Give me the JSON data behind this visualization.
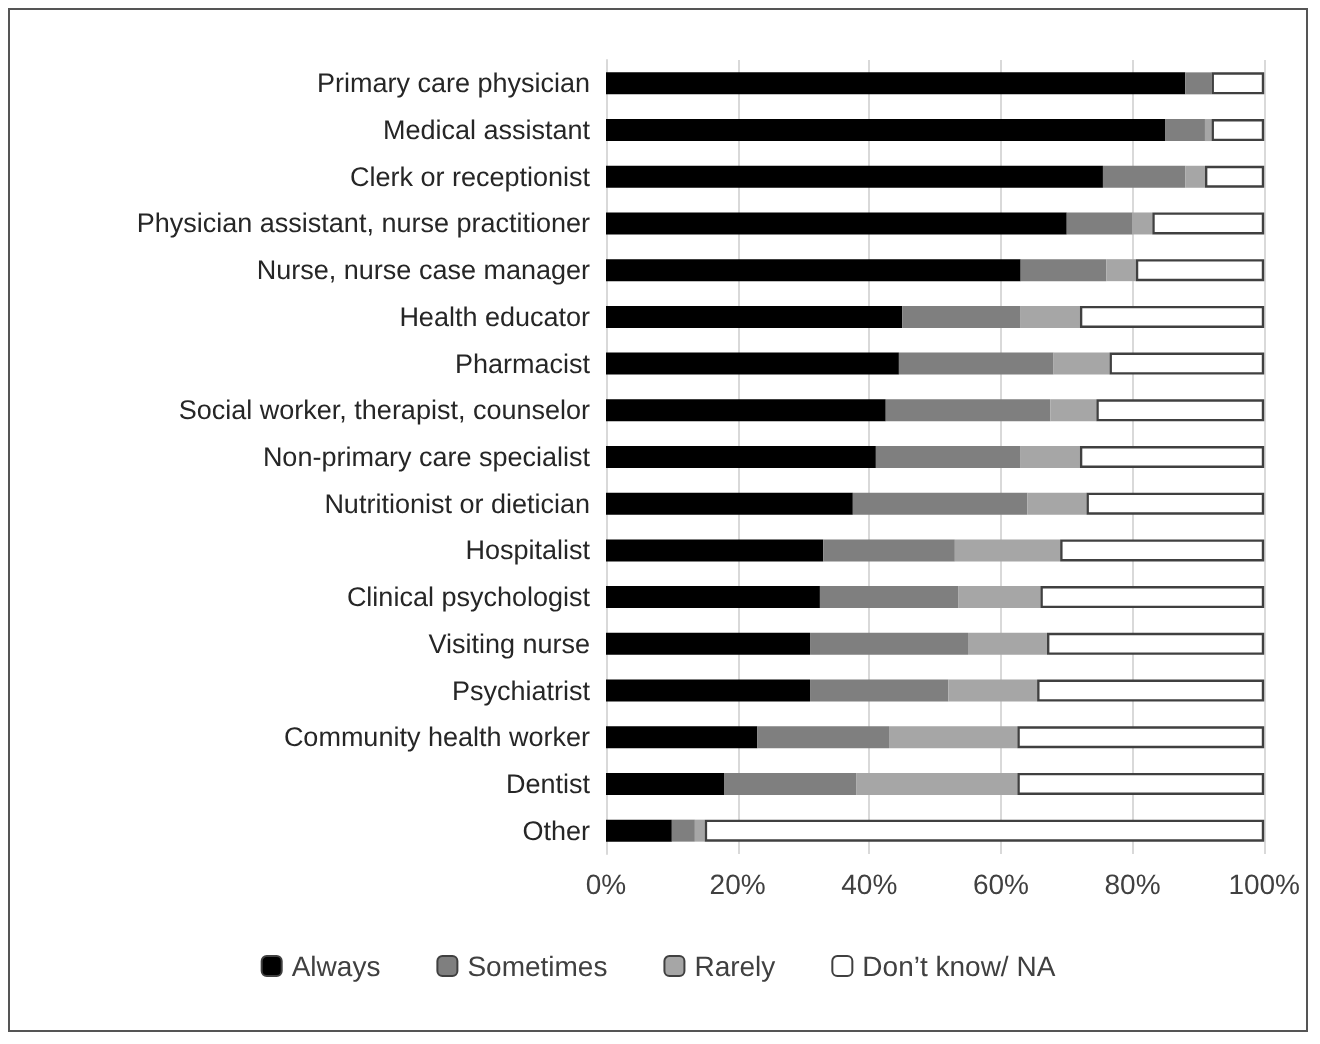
{
  "chart_data": {
    "type": "bar",
    "orientation": "horizontal",
    "stacked": true,
    "categories": [
      "Primary care physician",
      "Medical assistant",
      "Clerk or receptionist",
      "Physician assistant, nurse practitioner",
      "Nurse, nurse case manager",
      "Health educator",
      "Pharmacist",
      "Social worker, therapist, counselor",
      "Non-primary care specialist",
      "Nutritionist or dietician",
      "Hospitalist",
      "Clinical psychologist",
      "Visiting nurse",
      "Psychiatrist",
      "Community health worker",
      "Dentist",
      "Other"
    ],
    "series": [
      {
        "name": "Always",
        "color": "#000000",
        "values": [
          88,
          85,
          75.5,
          70,
          63,
          45,
          44.5,
          42.5,
          41,
          37.5,
          33,
          32.5,
          31,
          31,
          23,
          18,
          10
        ]
      },
      {
        "name": "Sometimes",
        "color": "#7f7f7f",
        "values": [
          4,
          6,
          12.5,
          10,
          13,
          18,
          23.5,
          25,
          22,
          26.5,
          20,
          21,
          24,
          21,
          20,
          20,
          3.5
        ]
      },
      {
        "name": "Rarely",
        "color": "#a6a6a6",
        "values": [
          null,
          1,
          3,
          3,
          4.5,
          9,
          8.5,
          7,
          9,
          9,
          16,
          12.5,
          12,
          13.5,
          19.5,
          24.5,
          1.5
        ]
      },
      {
        "name": "Don’t know/ NA",
        "color": "#ffffff",
        "values": [
          8,
          8,
          9,
          17,
          19.5,
          28,
          23.5,
          25.5,
          28,
          27,
          31,
          34,
          33,
          34.5,
          37.5,
          37.5,
          85
        ]
      }
    ],
    "xlim": [
      0,
      100
    ],
    "xticks": [
      {
        "value": 0,
        "label": "0%"
      },
      {
        "value": 20,
        "label": "20%"
      },
      {
        "value": 40,
        "label": "40%"
      },
      {
        "value": 60,
        "label": "60%"
      },
      {
        "value": 80,
        "label": "80%"
      },
      {
        "value": 100,
        "label": "100%"
      }
    ],
    "grid": "x",
    "legend": "bottom"
  }
}
